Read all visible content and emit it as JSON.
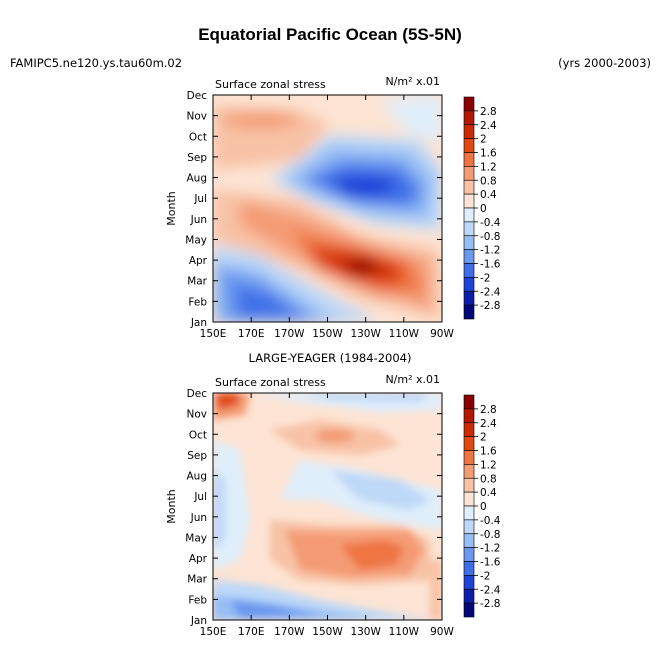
{
  "figure": {
    "title": "Equatorial Pacific Ocean (5S-5N)",
    "left_header": "FAMIPC5.ne120.ys.tau60m.02",
    "right_header": "(yrs 2000-2003)"
  },
  "colorbar": {
    "labels": [
      "2.8",
      "2.4",
      "2",
      "1.6",
      "1.2",
      "0.8",
      "0.4",
      "0",
      "-0.4",
      "-0.8",
      "-1.2",
      "-1.6",
      "-2",
      "-2.4",
      "-2.8"
    ],
    "colors": [
      "#8b0000",
      "#b31800",
      "#cc2a00",
      "#e04a12",
      "#ef7442",
      "#f49b74",
      "#f8c2a6",
      "#fde4d4",
      "#dfeefb",
      "#bed8f8",
      "#96bdf4",
      "#6a98ef",
      "#3f6fe8",
      "#1e43d8",
      "#0d1ea8",
      "#00087a"
    ]
  },
  "chart_data": [
    {
      "type": "heatmap",
      "title": "",
      "left_string": "Surface zonal stress",
      "units": "N/m² x.01",
      "xlabel": "",
      "ylabel": "Month",
      "xticks": [
        "150E",
        "170E",
        "170W",
        "150W",
        "130W",
        "110W",
        "90W"
      ],
      "yticks": [
        "Jan",
        "Feb",
        "Mar",
        "Apr",
        "May",
        "Jun",
        "Jul",
        "Aug",
        "Sep",
        "Oct",
        "Nov",
        "Dec"
      ],
      "features": [
        {
          "lon": 200,
          "month": 4,
          "value": 2.8
        },
        {
          "lon": 210,
          "month": 3.5,
          "value": 2.0
        },
        {
          "lon": 220,
          "month": 7.5,
          "value": -2.4
        },
        {
          "lon": 185,
          "month": 2,
          "value": -1.6
        },
        {
          "lon": 160,
          "month": 10.5,
          "value": 0.8
        }
      ]
    },
    {
      "type": "heatmap",
      "title": "LARGE-YEAGER (1984-2004)",
      "left_string": "Surface zonal stress",
      "units": "N/m² x.01",
      "xlabel": "",
      "ylabel": "Month",
      "xticks": [
        "150E",
        "170E",
        "170W",
        "150W",
        "130W",
        "110W",
        "90W"
      ],
      "yticks": [
        "Jan",
        "Feb",
        "Mar",
        "Apr",
        "May",
        "Jun",
        "Jul",
        "Aug",
        "Sep",
        "Oct",
        "Nov",
        "Dec"
      ],
      "features": [
        {
          "lon": 152,
          "month": 12,
          "value": 2.0
        },
        {
          "lon": 235,
          "month": 4.5,
          "value": 1.2
        },
        {
          "lon": 180,
          "month": 1.5,
          "value": -1.2
        },
        {
          "lon": 205,
          "month": 11.5,
          "value": -0.8
        }
      ]
    }
  ]
}
